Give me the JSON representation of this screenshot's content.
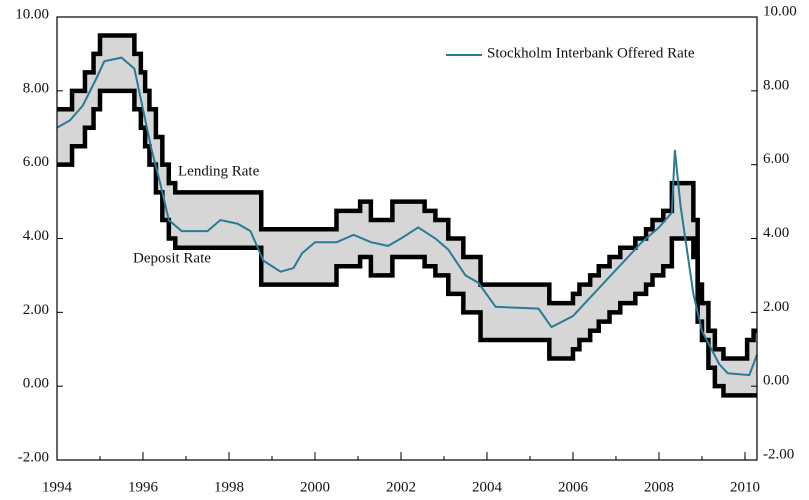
{
  "chart_data": {
    "type": "step-corridor",
    "x": [
      1994.0,
      1994.35,
      1994.65,
      1994.85,
      1995.0,
      1995.8,
      1995.95,
      1996.05,
      1996.15,
      1996.3,
      1996.45,
      1996.6,
      1996.75,
      1998.75,
      2000.5,
      2001.05,
      2001.3,
      2001.8,
      2002.55,
      2002.8,
      2003.1,
      2003.45,
      2003.85,
      2005.45,
      2006.0,
      2006.15,
      2006.4,
      2006.6,
      2006.85,
      2007.1,
      2007.45,
      2007.7,
      2007.85,
      2008.1,
      2008.3,
      2008.8,
      2008.9,
      2009.0,
      2009.15,
      2009.3,
      2009.5,
      2010.05,
      2010.2
    ],
    "series": [
      {
        "name": "Lending Rate",
        "color": "#000000",
        "values": [
          7.5,
          8.0,
          8.5,
          9.0,
          9.5,
          9.0,
          8.5,
          8.0,
          7.5,
          6.75,
          6.0,
          5.5,
          5.25,
          4.25,
          4.75,
          5.0,
          4.5,
          5.0,
          4.75,
          4.5,
          4.0,
          3.5,
          2.75,
          2.25,
          2.5,
          2.75,
          3.0,
          3.25,
          3.5,
          3.75,
          4.0,
          4.25,
          4.5,
          4.75,
          5.5,
          4.5,
          2.75,
          2.25,
          1.5,
          1.0,
          0.75,
          1.25,
          1.5
        ]
      },
      {
        "name": "Deposit Rate",
        "color": "#000000",
        "values": [
          6.0,
          6.5,
          7.0,
          7.5,
          8.0,
          7.5,
          7.0,
          6.5,
          6.0,
          5.25,
          4.5,
          4.0,
          3.75,
          2.75,
          3.25,
          3.5,
          3.0,
          3.5,
          3.25,
          3.0,
          2.5,
          2.0,
          1.25,
          0.75,
          1.0,
          1.25,
          1.5,
          1.75,
          2.0,
          2.25,
          2.5,
          2.75,
          3.0,
          3.25,
          4.0,
          3.5,
          1.75,
          1.25,
          0.5,
          0.0,
          -0.25,
          -0.25,
          -0.25
        ]
      },
      {
        "name": "Stockholm Interbank Offered Rate",
        "color": "#2a7a96",
        "x": [
          1994.0,
          1994.3,
          1994.6,
          1994.9,
          1995.1,
          1995.5,
          1995.8,
          1996.0,
          1996.2,
          1996.4,
          1996.6,
          1996.9,
          1997.5,
          1997.8,
          1998.2,
          1998.5,
          1998.8,
          1999.2,
          1999.5,
          1999.7,
          2000.0,
          2000.5,
          2000.9,
          2001.3,
          2001.7,
          2002.0,
          2002.4,
          2002.8,
          2003.1,
          2003.5,
          2003.8,
          2004.2,
          2005.2,
          2005.5,
          2006.0,
          2006.4,
          2006.8,
          2007.2,
          2007.6,
          2008.0,
          2008.3,
          2008.37,
          2008.5,
          2008.8,
          2009.0,
          2009.4,
          2009.6,
          2010.1,
          2010.28
        ],
        "values": [
          7.0,
          7.2,
          7.6,
          8.3,
          8.8,
          8.9,
          8.6,
          7.5,
          6.4,
          5.5,
          4.5,
          4.2,
          4.2,
          4.5,
          4.4,
          4.2,
          3.4,
          3.1,
          3.2,
          3.6,
          3.9,
          3.9,
          4.1,
          3.9,
          3.8,
          4.0,
          4.3,
          4.0,
          3.7,
          3.0,
          2.8,
          2.15,
          2.1,
          1.6,
          1.9,
          2.4,
          2.9,
          3.4,
          3.9,
          4.3,
          4.7,
          6.4,
          4.9,
          2.5,
          1.5,
          0.6,
          0.35,
          0.3,
          0.85
        ]
      }
    ],
    "annotations": [
      "Lending Rate",
      "Deposit Rate"
    ],
    "legend": "upper right",
    "band_color": "#d6d6d6",
    "xlim": [
      1994,
      2010.28
    ],
    "xticks": [
      1994,
      1996,
      1998,
      2000,
      2002,
      2004,
      2006,
      2008,
      2010
    ],
    "ylim": [
      -2,
      10
    ],
    "yticks": [
      {
        "value": -2,
        "label": "-2.00"
      },
      {
        "value": 0,
        "label": "0.00"
      },
      {
        "value": 2,
        "label": "2.00"
      },
      {
        "value": 4,
        "label": "4.00"
      },
      {
        "value": 6,
        "label": "6.00"
      },
      {
        "value": 8,
        "label": "8.00"
      },
      {
        "value": 10,
        "label": "10.00"
      }
    ],
    "y2lim": [
      -2,
      10
    ],
    "y2ticks": [
      {
        "value": -2,
        "label": "-2.00"
      },
      {
        "value": 0,
        "label": "0.00"
      },
      {
        "value": 2,
        "label": "2.00"
      },
      {
        "value": 4,
        "label": "4.00"
      },
      {
        "value": 6,
        "label": "6.00"
      },
      {
        "value": 8,
        "label": "8.00"
      },
      {
        "value": 10,
        "label": "10.00"
      }
    ]
  }
}
